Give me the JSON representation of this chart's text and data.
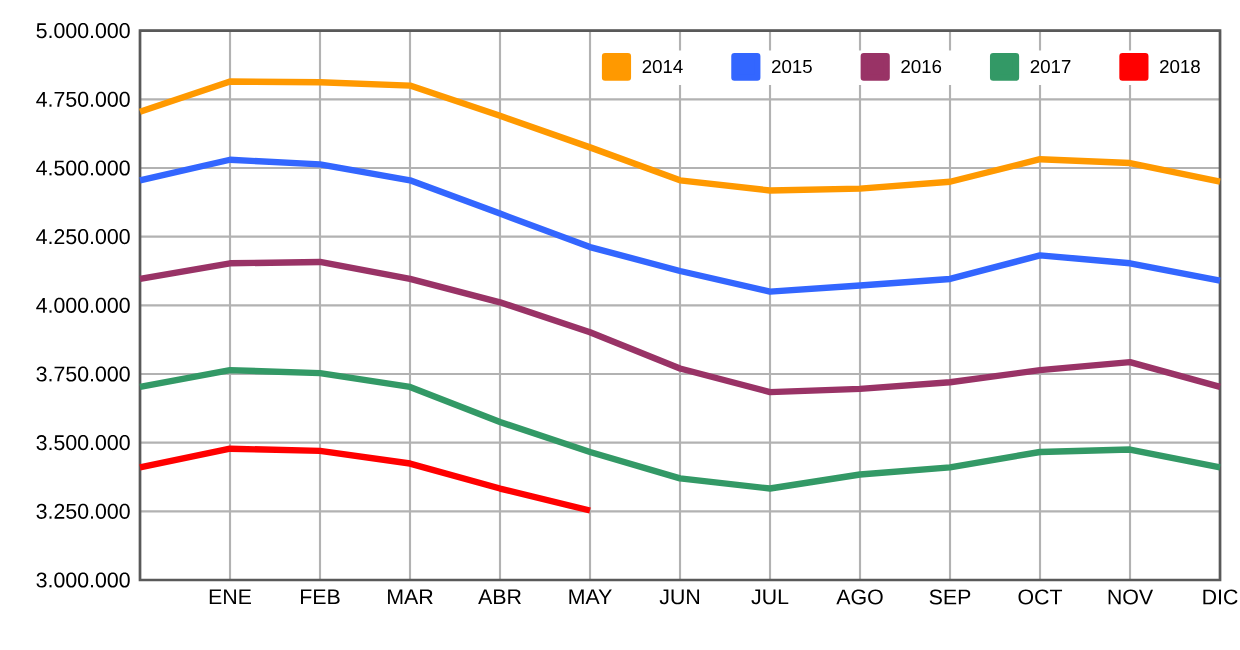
{
  "chart_data": {
    "type": "line",
    "categories": [
      null,
      "ENE",
      "FEB",
      "MAR",
      "ABR",
      "MAY",
      "JUN",
      "JUL",
      "AGO",
      "SEP",
      "OCT",
      "NOV",
      "DIC"
    ],
    "series": [
      {
        "name": "2014",
        "color": "#ff9900",
        "values": [
          4705000,
          4815000,
          4812000,
          4800000,
          4690000,
          4575000,
          4455000,
          4418000,
          4425000,
          4450000,
          4532000,
          4518000,
          4450000
        ]
      },
      {
        "name": "2015",
        "color": "#3366ff",
        "values": [
          4455000,
          4530000,
          4513000,
          4455000,
          4334000,
          4212000,
          4125000,
          4050000,
          4072000,
          4096000,
          4182000,
          4153000,
          4090000
        ]
      },
      {
        "name": "2016",
        "color": "#993366",
        "values": [
          4096000,
          4153000,
          4158000,
          4096000,
          4011000,
          3902000,
          3770000,
          3684000,
          3696000,
          3720000,
          3764000,
          3793000,
          3703000
        ]
      },
      {
        "name": "2017",
        "color": "#339966",
        "values": [
          3703000,
          3764000,
          3753000,
          3703000,
          3575000,
          3466000,
          3370000,
          3333000,
          3384000,
          3410000,
          3466000,
          3475000,
          3410000
        ]
      },
      {
        "name": "2018",
        "color": "#ff0000",
        "values": [
          3410000,
          3478000,
          3470000,
          3424000,
          3333000,
          3253000,
          null,
          null,
          null,
          null,
          null,
          null,
          null
        ]
      }
    ],
    "ylim": [
      3000000,
      5000000
    ],
    "yticks": [
      {
        "value": 3000000,
        "label": "3.000.000"
      },
      {
        "value": 3250000,
        "label": "3.250.000"
      },
      {
        "value": 3500000,
        "label": "3.500.000"
      },
      {
        "value": 3750000,
        "label": "3.750.000"
      },
      {
        "value": 4000000,
        "label": "4.000.000"
      },
      {
        "value": 4250000,
        "label": "4.250.000"
      },
      {
        "value": 4500000,
        "label": "4.500.000"
      },
      {
        "value": 4750000,
        "label": "4.750.000"
      },
      {
        "value": 5000000,
        "label": "5.000.000"
      }
    ],
    "grid": true,
    "legend": "top right",
    "marker": "none",
    "line_style": "solid"
  }
}
